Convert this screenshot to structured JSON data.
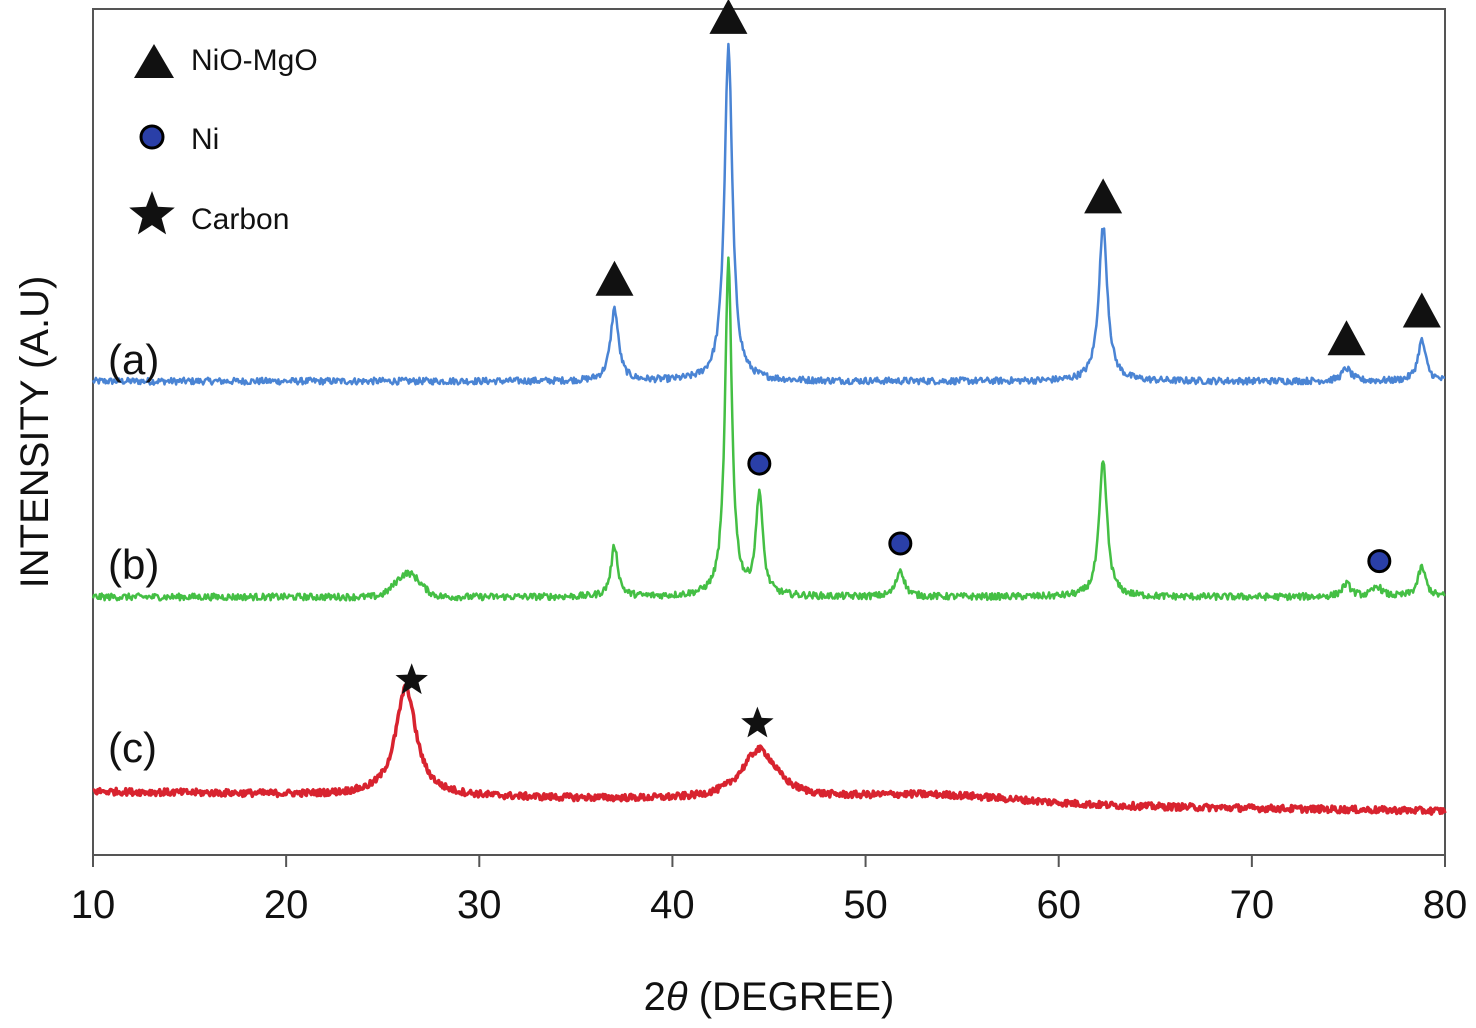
{
  "chart_data": {
    "type": "line",
    "title": "",
    "xlabel": "2θ (DEGREE)",
    "xlabel_prefix": "2",
    "xlabel_symbol": "θ",
    "xlabel_suffix": " (DEGREE)",
    "ylabel": "INTENSITY (A.U)",
    "xlim": [
      10,
      80
    ],
    "ylim": [
      0,
      1
    ],
    "x_ticks": [
      10,
      20,
      30,
      40,
      50,
      60,
      70,
      80
    ],
    "x_tick_labels": [
      "10",
      "20",
      "30",
      "40",
      "50",
      "60",
      "70",
      "80"
    ],
    "y_ticks_visible": false,
    "grid": false,
    "legend_position": "top-left",
    "legend": [
      {
        "marker": "triangle",
        "label": "NiO-MgO",
        "color": "#111111"
      },
      {
        "marker": "circle",
        "label": "Ni",
        "color": "#2a3fa8"
      },
      {
        "marker": "star",
        "label": "Carbon",
        "color": "#111111"
      }
    ],
    "series": [
      {
        "name": "(a)",
        "color": "#4a84d4",
        "baseline": 0.56,
        "noise": 0.004,
        "background": [],
        "peaks": [
          {
            "x": 37.0,
            "height": 0.085,
            "width": 0.35
          },
          {
            "x": 42.9,
            "height": 0.395,
            "width": 0.35
          },
          {
            "x": 62.3,
            "height": 0.183,
            "width": 0.38
          },
          {
            "x": 74.9,
            "height": 0.015,
            "width": 0.4
          },
          {
            "x": 78.8,
            "height": 0.048,
            "width": 0.35
          }
        ],
        "markers": [
          {
            "x": 37.0,
            "type": "triangle"
          },
          {
            "x": 42.9,
            "type": "triangle"
          },
          {
            "x": 62.3,
            "type": "triangle"
          },
          {
            "x": 74.9,
            "type": "triangle"
          },
          {
            "x": 78.8,
            "type": "triangle"
          }
        ]
      },
      {
        "name": "(b)",
        "color": "#44bf44",
        "baseline": 0.305,
        "noise": 0.004,
        "background": [
          {
            "x": 26.3,
            "height": 0.028,
            "width": 0.9
          }
        ],
        "peaks": [
          {
            "x": 37.0,
            "height": 0.06,
            "width": 0.3
          },
          {
            "x": 42.9,
            "height": 0.395,
            "width": 0.3
          },
          {
            "x": 44.5,
            "height": 0.12,
            "width": 0.3
          },
          {
            "x": 51.8,
            "height": 0.032,
            "width": 0.35
          },
          {
            "x": 62.3,
            "height": 0.16,
            "width": 0.35
          },
          {
            "x": 74.9,
            "height": 0.015,
            "width": 0.4
          },
          {
            "x": 76.5,
            "height": 0.012,
            "width": 0.4
          },
          {
            "x": 78.8,
            "height": 0.035,
            "width": 0.35
          }
        ],
        "markers": [
          {
            "x": 44.5,
            "type": "circle"
          },
          {
            "x": 51.8,
            "type": "circle"
          },
          {
            "x": 76.6,
            "type": "circle"
          }
        ]
      },
      {
        "name": "(c)",
        "color": "#d8232f",
        "baseline": 0.075,
        "baseline_end": 0.052,
        "noise": 0.004,
        "background": [
          {
            "x": 53.5,
            "height": 0.01,
            "width": 6
          }
        ],
        "peaks": [
          {
            "x": 26.2,
            "height": 0.128,
            "width": 0.9
          },
          {
            "x": 44.5,
            "height": 0.06,
            "width": 1.6
          }
        ],
        "markers": [
          {
            "x": 26.5,
            "type": "star"
          },
          {
            "x": 44.4,
            "type": "star"
          }
        ]
      }
    ]
  }
}
